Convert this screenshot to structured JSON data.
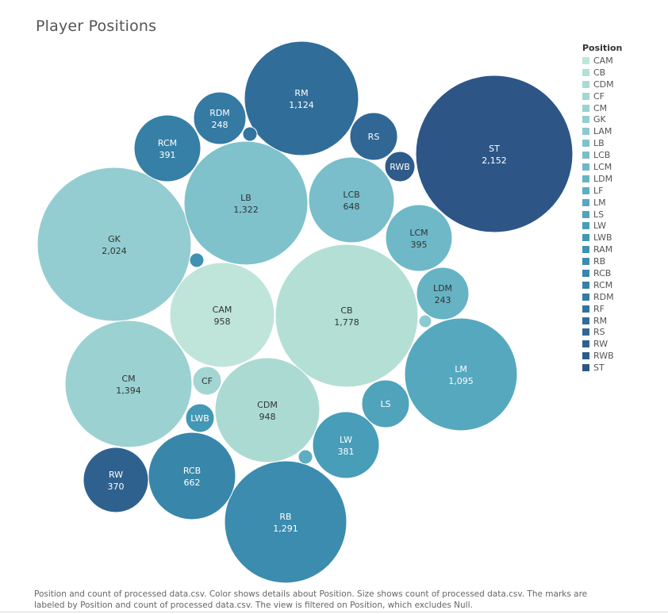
{
  "title": "Player Positions",
  "legend": {
    "title": "Position"
  },
  "caption": {
    "line1": "Position and count of processed data.csv.  Color shows details about Position.  Size shows count of processed data.csv.  The marks are",
    "line2": "labeled by Position and count of processed data.csv. The view is filtered on Position, which excludes Null."
  },
  "chart_data": {
    "type": "packed-bubble",
    "title": "Player Positions",
    "size_measure": "count of processed data.csv",
    "color_dimension": "Position",
    "legend_position": "right",
    "bubbles": [
      {
        "name": "CAM",
        "value": 958,
        "value_label": "958",
        "color": "#BFE5DA"
      },
      {
        "name": "CB",
        "value": 1778,
        "value_label": "1,778",
        "color": "#B3DFD5"
      },
      {
        "name": "CDM",
        "value": 948,
        "value_label": "948",
        "color": "#ABDAD3"
      },
      {
        "name": "CF",
        "value": null,
        "value_label": "",
        "color": "#A3D6D2"
      },
      {
        "name": "CM",
        "value": 1394,
        "value_label": "1,394",
        "color": "#9BD1D1"
      },
      {
        "name": "GK",
        "value": 2024,
        "value_label": "2,024",
        "color": "#94CDD1"
      },
      {
        "name": "LAM",
        "value": null,
        "value_label": "",
        "color": "#8CC9D0"
      },
      {
        "name": "LB",
        "value": 1322,
        "value_label": "1,322",
        "color": "#7FC2CC"
      },
      {
        "name": "LCB",
        "value": 648,
        "value_label": "648",
        "color": "#79BECA"
      },
      {
        "name": "LCM",
        "value": 395,
        "value_label": "395",
        "color": "#6FB8C7"
      },
      {
        "name": "LDM",
        "value": 243,
        "value_label": "243",
        "color": "#66B3C4"
      },
      {
        "name": "LF",
        "value": null,
        "value_label": "",
        "color": "#5EAEC1"
      },
      {
        "name": "LM",
        "value": 1095,
        "value_label": "1,095",
        "color": "#56A8BF"
      },
      {
        "name": "LS",
        "value": null,
        "value_label": "",
        "color": "#4FA3BB"
      },
      {
        "name": "LW",
        "value": 381,
        "value_label": "381",
        "color": "#489DB8"
      },
      {
        "name": "LWB",
        "value": null,
        "value_label": "",
        "color": "#4398B5"
      },
      {
        "name": "RAM",
        "value": null,
        "value_label": "",
        "color": "#3F92B2"
      },
      {
        "name": "RB",
        "value": 1291,
        "value_label": "1,291",
        "color": "#3B8CAE"
      },
      {
        "name": "RCB",
        "value": 662,
        "value_label": "662",
        "color": "#3886AA"
      },
      {
        "name": "RCM",
        "value": 391,
        "value_label": "391",
        "color": "#3680A7"
      },
      {
        "name": "RDM",
        "value": 248,
        "value_label": "248",
        "color": "#347AA3"
      },
      {
        "name": "RF",
        "value": null,
        "value_label": "",
        "color": "#32749E"
      },
      {
        "name": "RM",
        "value": 1124,
        "value_label": "1,124",
        "color": "#316D99"
      },
      {
        "name": "RS",
        "value": null,
        "value_label": "",
        "color": "#306794"
      },
      {
        "name": "RW",
        "value": 370,
        "value_label": "370",
        "color": "#2F618F"
      },
      {
        "name": "RWB",
        "value": null,
        "value_label": "",
        "color": "#2E5B8A"
      },
      {
        "name": "ST",
        "value": 2152,
        "value_label": "2,152",
        "color": "#2D5686"
      }
    ]
  }
}
